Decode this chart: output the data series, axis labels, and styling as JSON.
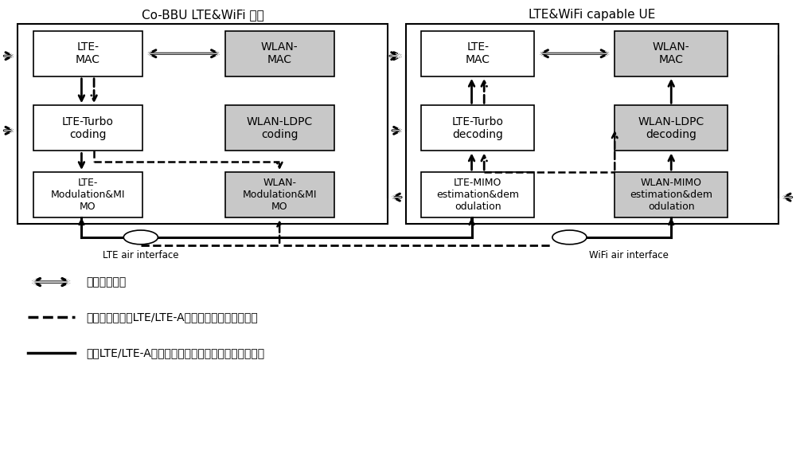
{
  "title_left": "Co-BBU LTE&WiFi 基站",
  "title_right": "LTE&WiFi capable UE",
  "bg_color": "#ffffff",
  "box_white": "#ffffff",
  "box_gray": "#c8c8c8",
  "legend_items": [
    {
      "text": "控制信息接口"
    },
    {
      "text": "本发明所提出的LTE/LTE-A单播业务数据流处理路径"
    },
    {
      "text": "当前LTE/LTE-A协议所定义的单播业务数据流处理路径"
    }
  ],
  "figsize": [
    10.0,
    5.8
  ],
  "dpi": 100
}
